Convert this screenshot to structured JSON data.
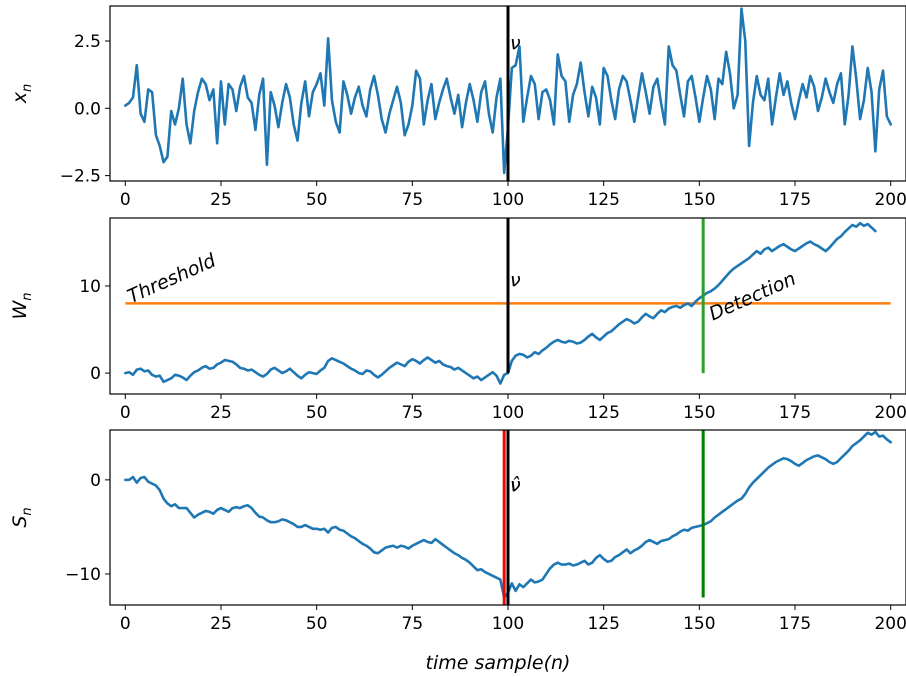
{
  "chart_data": [
    {
      "type": "line",
      "ylabel": "x",
      "ylabel_sub": "n",
      "xlim": [
        -4,
        204
      ],
      "ylim": [
        -2.7,
        3.8
      ],
      "xticks": [
        0,
        25,
        50,
        75,
        100,
        125,
        150,
        175,
        200
      ],
      "yticks": [
        -2.5,
        0.0,
        2.5
      ],
      "ytick_labels": [
        "−2.5",
        "0.0",
        "2.5"
      ],
      "series_color": "#1f77b4",
      "annotations": [
        {
          "text": "ν",
          "x": 100,
          "y": 2.2
        }
      ],
      "vlines": [
        {
          "x": 100,
          "ymin": -2.7,
          "ymax": 3.8,
          "color": "#000000"
        }
      ],
      "hlines": [],
      "series": [
        {
          "values": [
            0.1,
            0.2,
            0.4,
            1.6,
            -0.2,
            -0.5,
            0.7,
            0.6,
            -1.0,
            -1.4,
            -2.0,
            -1.8,
            -0.1,
            -0.6,
            0.0,
            1.1,
            -0.6,
            -1.3,
            -0.1,
            0.6,
            1.1,
            0.9,
            0.3,
            0.7,
            -1.3,
            1.0,
            -0.6,
            0.9,
            0.7,
            -0.1,
            0.8,
            1.2,
            0.4,
            0.2,
            -0.8,
            0.5,
            1.1,
            -2.1,
            0.6,
            0.1,
            -0.7,
            0.2,
            0.9,
            0.4,
            -0.6,
            -1.2,
            0.2,
            1.0,
            -0.3,
            0.6,
            0.9,
            1.3,
            0.1,
            2.6,
            0.3,
            -0.5,
            -0.9,
            1.0,
            0.5,
            -0.2,
            0.4,
            0.8,
            0.1,
            -0.3,
            0.7,
            1.2,
            0.5,
            -0.4,
            -0.9,
            -0.2,
            0.3,
            0.8,
            0.2,
            -1.0,
            -0.6,
            0.1,
            1.4,
            1.1,
            -0.6,
            0.3,
            0.9,
            -0.4,
            0.2,
            0.7,
            1.1,
            0.4,
            -0.2,
            0.5,
            -0.7,
            0.2,
            0.9,
            0.3,
            -0.5,
            0.6,
            1.0,
            -0.2,
            -0.9,
            0.4,
            1.1,
            -2.4,
            -0.7,
            1.5,
            1.6,
            2.3,
            -0.5,
            0.4,
            1.2,
            0.9,
            -0.4,
            0.6,
            0.7,
            0.3,
            -0.6,
            2.0,
            1.2,
            1.0,
            -0.5,
            0.5,
            0.9,
            1.7,
            0.6,
            -0.3,
            0.8,
            0.4,
            -0.6,
            1.5,
            1.2,
            0.3,
            -0.4,
            0.7,
            1.2,
            1.0,
            0.3,
            -0.5,
            0.4,
            1.3,
            0.6,
            -0.2,
            0.8,
            1.1,
            0.2,
            -0.6,
            2.3,
            1.6,
            1.4,
            0.5,
            -0.3,
            1.0,
            1.2,
            0.4,
            -0.5,
            0.4,
            1.2,
            0.7,
            -0.4,
            1.1,
            0.9,
            2.1,
            1.3,
            0.0,
            0.5,
            3.7,
            2.5,
            -1.4,
            0.2,
            1.2,
            0.5,
            0.3,
            1.1,
            -0.6,
            0.4,
            1.3,
            0.5,
            1.0,
            0.2,
            -0.4,
            0.3,
            0.9,
            0.4,
            1.2,
            0.8,
            -0.1,
            0.4,
            1.1,
            0.6,
            0.2,
            0.9,
            1.3,
            -0.6,
            0.5,
            2.3,
            1.1,
            -0.4,
            0.3,
            1.5,
            0.6,
            -1.6,
            0.7,
            1.4,
            -0.3,
            -0.6
          ]
        }
      ]
    },
    {
      "type": "line",
      "ylabel": "W",
      "ylabel_sub": "n",
      "xlim": [
        -4,
        204
      ],
      "ylim": [
        -2.4,
        17.8
      ],
      "xticks": [
        0,
        25,
        50,
        75,
        100,
        125,
        150,
        175,
        200
      ],
      "yticks": [
        0,
        10
      ],
      "ytick_labels": [
        "0",
        "10"
      ],
      "series_color": "#1f77b4",
      "annotations": [
        {
          "text": "Threshold",
          "x": 1,
          "y": 8.0,
          "rotate": -24
        },
        {
          "text": "ν",
          "x": 100,
          "y": 10.0
        },
        {
          "text": "Detection",
          "x": 153,
          "y": 6.0,
          "rotate": -24
        }
      ],
      "vlines": [
        {
          "x": 100,
          "ymin": 0,
          "ymax": 17.8,
          "color": "#000000"
        },
        {
          "x": 151,
          "ymin": 0,
          "ymax": 17.8,
          "color": "#2ca02c"
        }
      ],
      "hlines": [
        {
          "y": 8,
          "xmin": 0,
          "xmax": 200,
          "color": "#ff7f0e"
        }
      ],
      "series": [
        {
          "values": [
            0.0,
            0.1,
            -0.2,
            0.4,
            0.5,
            0.2,
            0.3,
            -0.2,
            -0.4,
            -0.3,
            -1.0,
            -0.8,
            -0.6,
            -0.2,
            -0.3,
            -0.5,
            -0.8,
            -0.3,
            0.1,
            0.3,
            0.6,
            0.8,
            0.5,
            0.6,
            1.0,
            1.2,
            1.5,
            1.4,
            1.3,
            1.0,
            0.6,
            0.5,
            0.3,
            0.4,
            0.1,
            -0.2,
            -0.4,
            -0.1,
            0.4,
            0.6,
            0.3,
            0.0,
            0.2,
            0.5,
            0.1,
            -0.3,
            -0.6,
            -0.2,
            0.1,
            0.0,
            -0.1,
            0.3,
            0.6,
            1.4,
            1.7,
            1.5,
            1.3,
            1.1,
            0.8,
            0.5,
            0.3,
            0.0,
            -0.1,
            0.3,
            0.2,
            -0.2,
            -0.5,
            -0.2,
            0.2,
            0.6,
            0.9,
            1.2,
            1.0,
            0.8,
            1.3,
            1.6,
            1.4,
            1.1,
            1.5,
            1.8,
            1.5,
            1.2,
            1.4,
            1.0,
            0.8,
            0.7,
            0.4,
            0.6,
            0.3,
            0.0,
            -0.3,
            -0.6,
            -0.4,
            -0.8,
            -0.5,
            -0.2,
            0.1,
            -0.3,
            -1.2,
            -0.2,
            0.0,
            1.4,
            2.0,
            2.2,
            2.1,
            1.8,
            2.0,
            2.4,
            2.2,
            2.6,
            2.9,
            3.3,
            3.6,
            3.8,
            3.6,
            3.5,
            3.7,
            3.6,
            3.4,
            3.5,
            3.8,
            4.2,
            4.5,
            4.1,
            3.8,
            4.2,
            4.6,
            4.8,
            5.2,
            5.6,
            5.9,
            6.2,
            6.0,
            5.7,
            5.9,
            6.4,
            6.8,
            6.5,
            6.3,
            6.8,
            7.2,
            7.0,
            7.4,
            7.6,
            7.7,
            7.5,
            7.8,
            8.0,
            7.7,
            8.2,
            8.6,
            8.9,
            9.2,
            9.4,
            9.7,
            10.1,
            10.6,
            11.1,
            11.6,
            12.0,
            12.3,
            12.6,
            12.9,
            13.2,
            13.6,
            14.0,
            13.7,
            14.2,
            14.4,
            14.0,
            14.3,
            14.6,
            14.8,
            14.5,
            14.2,
            14.0,
            14.3,
            14.6,
            14.9,
            15.1,
            14.8,
            14.6,
            14.3,
            14.0,
            14.4,
            14.9,
            15.4,
            15.7,
            16.2,
            16.6,
            17.0,
            16.8,
            17.2,
            16.9,
            17.1,
            16.7,
            16.3
          ]
        }
      ]
    },
    {
      "type": "line",
      "ylabel": "S",
      "ylabel_sub": "n",
      "xlabel": "time sample(n)",
      "xlim": [
        -4,
        204
      ],
      "ylim": [
        -13.3,
        5.3
      ],
      "xticks": [
        0,
        25,
        50,
        75,
        100,
        125,
        150,
        175,
        200
      ],
      "yticks": [
        -10,
        0
      ],
      "ytick_labels": [
        "−10",
        "0"
      ],
      "series_color": "#1f77b4",
      "annotations": [
        {
          "text": "ν",
          "x": 100,
          "y": -1.2
        },
        {
          "text": "ν̂",
          "x": 100,
          "y": -1.2
        }
      ],
      "vlines": [
        {
          "x": 99,
          "ymin": -13.3,
          "ymax": 5.3,
          "color": "#ff0000"
        },
        {
          "x": 100,
          "ymin": -13.3,
          "ymax": 5.3,
          "color": "#000000"
        },
        {
          "x": 151,
          "ymin": -12.5,
          "ymax": 5.3,
          "color": "#008000"
        }
      ],
      "hlines": [],
      "series": [
        {
          "values": [
            0.0,
            0.0,
            0.3,
            -0.3,
            0.2,
            0.3,
            -0.2,
            -0.4,
            -0.6,
            -1.1,
            -2.0,
            -2.5,
            -2.8,
            -2.6,
            -3.0,
            -3.0,
            -3.0,
            -3.5,
            -4.0,
            -3.7,
            -3.5,
            -3.3,
            -3.4,
            -3.6,
            -3.2,
            -3.0,
            -3.2,
            -3.4,
            -3.0,
            -2.9,
            -3.0,
            -2.8,
            -2.7,
            -3.0,
            -3.5,
            -3.9,
            -4.0,
            -4.3,
            -4.5,
            -4.5,
            -4.4,
            -4.2,
            -4.3,
            -4.5,
            -4.7,
            -5.0,
            -5.0,
            -4.8,
            -5.0,
            -5.2,
            -5.2,
            -5.3,
            -5.2,
            -5.6,
            -5.1,
            -5.0,
            -5.3,
            -5.4,
            -5.7,
            -6.0,
            -6.2,
            -6.5,
            -6.8,
            -7.0,
            -7.3,
            -7.7,
            -7.8,
            -7.5,
            -7.2,
            -7.1,
            -7.0,
            -7.2,
            -7.0,
            -7.1,
            -7.3,
            -7.0,
            -6.8,
            -6.6,
            -6.4,
            -6.6,
            -6.7,
            -6.3,
            -6.6,
            -6.9,
            -7.2,
            -7.5,
            -7.8,
            -8.0,
            -8.3,
            -8.5,
            -8.8,
            -9.2,
            -9.6,
            -9.5,
            -9.8,
            -10.0,
            -10.2,
            -10.4,
            -10.6,
            -12.5,
            -12.0,
            -11.0,
            -11.8,
            -11.1,
            -11.4,
            -11.0,
            -10.6,
            -10.9,
            -10.8,
            -10.6,
            -10.0,
            -9.4,
            -9.0,
            -8.8,
            -9.0,
            -9.0,
            -8.9,
            -9.1,
            -9.0,
            -8.8,
            -8.6,
            -9.0,
            -8.8,
            -8.3,
            -8.0,
            -8.4,
            -8.7,
            -8.6,
            -8.2,
            -8.0,
            -7.7,
            -7.4,
            -7.8,
            -7.5,
            -7.3,
            -7.0,
            -6.6,
            -6.4,
            -6.6,
            -6.8,
            -6.5,
            -6.4,
            -6.3,
            -6.0,
            -5.8,
            -5.5,
            -5.3,
            -5.4,
            -5.1,
            -5.0,
            -4.9,
            -4.8,
            -4.6,
            -4.4,
            -4.0,
            -3.7,
            -3.4,
            -3.1,
            -2.8,
            -2.5,
            -2.2,
            -2.0,
            -1.5,
            -0.8,
            -0.3,
            0.1,
            0.5,
            0.9,
            1.3,
            1.6,
            1.9,
            2.1,
            2.3,
            2.2,
            2.0,
            1.7,
            1.5,
            1.8,
            2.1,
            2.3,
            2.5,
            2.6,
            2.4,
            2.2,
            1.9,
            1.7,
            1.9,
            2.3,
            2.7,
            3.1,
            3.6,
            3.9,
            4.2,
            4.6,
            5.0,
            4.8,
            5.1,
            4.6,
            4.7,
            4.3,
            4.0
          ]
        }
      ]
    }
  ]
}
